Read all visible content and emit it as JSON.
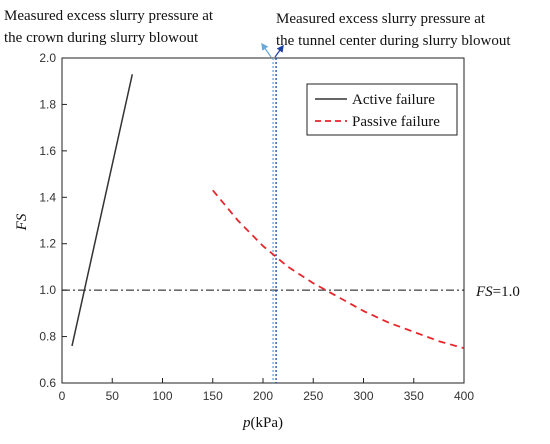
{
  "chart_data": {
    "type": "line",
    "xlabel_italic": "p",
    "xlabel_rest": "(kPa)",
    "ylabel": "FS",
    "xlim": [
      0,
      400
    ],
    "ylim": [
      0.6,
      2.0
    ],
    "x_ticks": [
      0,
      50,
      100,
      150,
      200,
      250,
      300,
      350,
      400
    ],
    "y_ticks": [
      "0.6",
      "0.8",
      "1.0",
      "1.2",
      "1.4",
      "1.6",
      "1.8",
      "2.0"
    ],
    "grid": false,
    "legend_position": "top-right",
    "series": [
      {
        "name": "Active failure",
        "color": "#333333",
        "style": "solid",
        "x": [
          10,
          70
        ],
        "y": [
          0.76,
          1.93
        ]
      },
      {
        "name": "Passive failure",
        "color": "#e8262b",
        "style": "dashed",
        "x": [
          150,
          175,
          200,
          225,
          250,
          275,
          300,
          325,
          350,
          375,
          400
        ],
        "y": [
          1.43,
          1.3,
          1.19,
          1.1,
          1.03,
          0.97,
          0.91,
          0.86,
          0.82,
          0.78,
          0.75
        ]
      }
    ],
    "reference_line": {
      "y": 1.0,
      "label_italic": "FS",
      "label_rest": "=1.0",
      "color": "#111111"
    },
    "vertical_lines": [
      {
        "x": 210,
        "color": "#6aa8d8"
      },
      {
        "x": 213,
        "color": "#1a3fa6"
      }
    ],
    "annotations": [
      {
        "lines": [
          "Measured excess slurry pressure at",
          "the crown during slurry blowout"
        ],
        "arrow_color": "#6aa8d8"
      },
      {
        "lines": [
          "Measured excess slurry pressure at",
          "the tunnel center during slurry blowout"
        ],
        "arrow_color": "#1a3fa6"
      }
    ]
  }
}
